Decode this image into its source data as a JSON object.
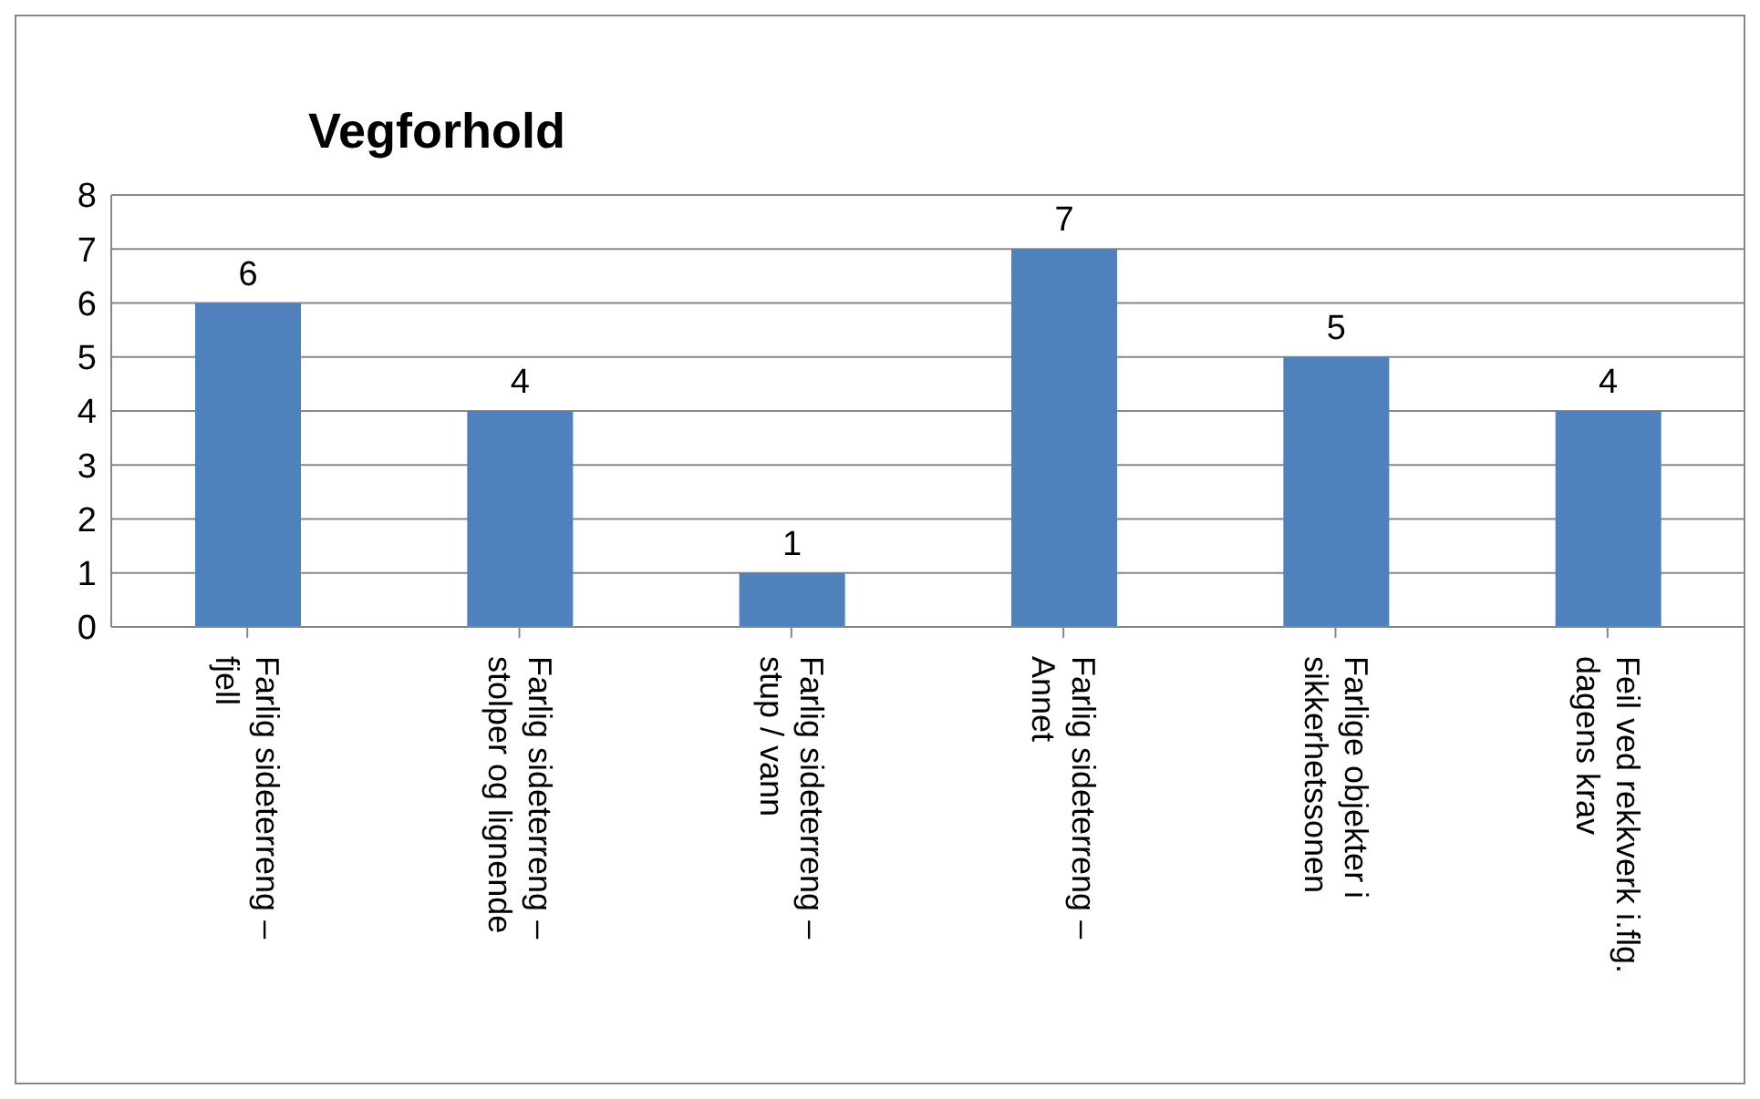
{
  "chart_data": {
    "type": "bar",
    "title": "Vegforhold",
    "categories": [
      "Farlig sideterreng – fjell",
      "Farlig sideterreng – stolper og lignende",
      "Farlig sideterreng – stup / vann",
      "Farlig sideterreng – Annet",
      "Farlige objekter i sikkerhetssonen",
      "Feil ved rekkverk i.flg. dagens krav"
    ],
    "values": [
      6,
      4,
      1,
      7,
      5,
      4
    ],
    "color": "#4f81bd",
    "ylim": [
      0,
      8
    ],
    "yticks": [
      0,
      1,
      2,
      3,
      4,
      5,
      6,
      7,
      8
    ],
    "grid": "y",
    "data_labels": true
  }
}
